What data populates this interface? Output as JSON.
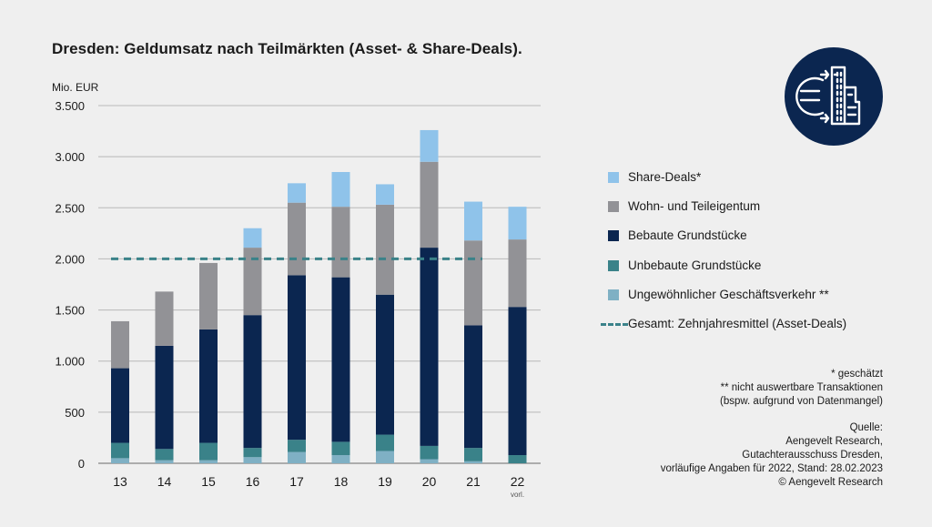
{
  "title": "Dresden: Geldumsatz nach Teilmärkten (Asset- & Share-Deals).",
  "chart_data": {
    "type": "bar",
    "stacked": true,
    "title": "Dresden: Geldumsatz nach Teilmärkten (Asset- & Share-Deals).",
    "ylabel": "Mio. EUR",
    "xlabel": "",
    "ylim": [
      0,
      3500
    ],
    "yticks": [
      {
        "value": 0,
        "label": "0"
      },
      {
        "value": 500,
        "label": "500"
      },
      {
        "value": 1000,
        "label": "1.000"
      },
      {
        "value": 1500,
        "label": "1.500"
      },
      {
        "value": 2000,
        "label": "2.000"
      },
      {
        "value": 2500,
        "label": "2.500"
      },
      {
        "value": 3000,
        "label": "3.000"
      },
      {
        "value": 3500,
        "label": "3.500"
      }
    ],
    "grid": true,
    "categories": [
      "13",
      "14",
      "15",
      "16",
      "17",
      "18",
      "19",
      "20",
      "21",
      "22"
    ],
    "category_sublabels": [
      "",
      "",
      "",
      "",
      "",
      "",
      "",
      "",
      "",
      "vorl."
    ],
    "series": [
      {
        "name": "Ungewöhnlicher Geschäftsverkehr **",
        "color": "#7fb0c4",
        "values": [
          50,
          30,
          30,
          60,
          110,
          80,
          120,
          40,
          20,
          0
        ]
      },
      {
        "name": "Unbebaute Grundstücke",
        "color": "#3a8289",
        "values": [
          150,
          110,
          170,
          90,
          120,
          130,
          160,
          130,
          130,
          80
        ]
      },
      {
        "name": "Bebaute Grundstücke",
        "color": "#0b2650",
        "values": [
          730,
          1010,
          1110,
          1300,
          1610,
          1610,
          1370,
          1940,
          1200,
          1450
        ]
      },
      {
        "name": "Wohn- und Teileigentum",
        "color": "#929296",
        "values": [
          460,
          530,
          650,
          660,
          710,
          690,
          880,
          840,
          830,
          660
        ]
      },
      {
        "name": "Share-Deals*",
        "color": "#8fc3ea",
        "values": [
          0,
          0,
          0,
          190,
          190,
          340,
          200,
          310,
          380,
          320
        ]
      }
    ],
    "reference_line": {
      "name": "Gesamt: Zehnjahresmittel (Asset-Deals)",
      "value": 2000,
      "color": "#3a8289",
      "style": "dashed",
      "from_category": "13",
      "to_category": "21"
    },
    "legend_position": "right"
  },
  "legend": [
    {
      "label": "Share-Deals*",
      "color": "#8fc3ea",
      "kind": "box"
    },
    {
      "label": "Wohn- und Teileigentum",
      "color": "#929296",
      "kind": "box"
    },
    {
      "label": "Bebaute Grundstücke",
      "color": "#0b2650",
      "kind": "box"
    },
    {
      "label": "Unbebaute Grundstücke",
      "color": "#3a8289",
      "kind": "box"
    },
    {
      "label": "Ungewöhnlicher Geschäftsverkehr **",
      "color": "#7fb0c4",
      "kind": "box"
    },
    {
      "label": "Gesamt: Zehnjahresmittel (Asset-Deals)",
      "color": "#3a8289",
      "kind": "dash"
    }
  ],
  "footnotes": [
    "* geschätzt",
    "** nicht auswertbare Transaktionen",
    "(bspw. aufgrund von Datenmangel)"
  ],
  "source": [
    "Quelle:",
    "Aengevelt Research,",
    "Gutachterausschuss Dresden,",
    "vorläufige Angaben für 2022, Stand: 28.02.2023",
    "© Aengevelt Research"
  ],
  "logo": {
    "icon": "euro-building-icon",
    "background": "#0b2650",
    "foreground": "#ffffff"
  }
}
